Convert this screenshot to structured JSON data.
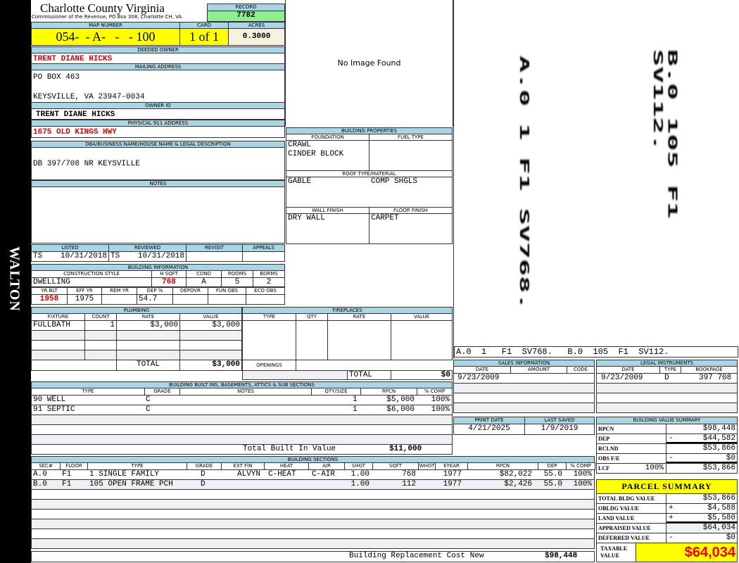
{
  "county": {
    "title": "Charlotte County Virginia",
    "subtitle": "Commissioner of the Revenue, PO Box 308, Charlotte CH, VA"
  },
  "side_label": "WALTON",
  "record": {
    "label": "RECORD",
    "value": "7782"
  },
  "map": {
    "label": "MAP NUMBER",
    "value": "054-  - A-   -   - 100",
    "card_label": "CARD",
    "card": "1 of 1",
    "acres_label": "ACRES",
    "acres": "0.3000"
  },
  "owner": {
    "deeded_label": "DEEDED OWNER",
    "deeded": "TRENT DIANE HICKS",
    "mailing_label": "MAILING ADDRESS",
    "mail1": "PO BOX 463",
    "mail2": "KEYSVILLE, VA 23947-0034",
    "owner_id_label": "OWNER ID",
    "owner_id": "TRENT DIANE HICKS",
    "physical_label": "PHYSICAL 911 ADDRESS",
    "physical": "1675 OLD KINGS HWY",
    "dba_label": "DBA/BUSINESS NAME/HOUSE NAME & LEGAL DESCRIPTION",
    "dba": "DB 397/708 NR KEYSVILLE",
    "notes_label": "NOTES"
  },
  "image": {
    "no_image": "No Image Found"
  },
  "props": {
    "title": "BUILDING PROPERTIES",
    "foundation_label": "FOUNDATION",
    "fuel_label": "FUEL TYPE",
    "foundation1": "CRAWL",
    "foundation2": "CINDER BLOCK",
    "roof_label": "ROOF TYPE/MATERIAL",
    "roof1": "GABLE",
    "roof2": "COMP SHGLS",
    "wall_label": "WALL FINISH",
    "floor_label": "FLOOR FINISH",
    "wall": "DRY WALL",
    "floor": "CARPET"
  },
  "sketch": {
    "caption": "A.0  1   F1  SV768.   B.0  105  F1  SV112.",
    "v1": "A.0 1 F1 SV768.",
    "v2": "B.0 105 F1 SV112."
  },
  "review": {
    "listed_label": "LISTED",
    "listed_by": "TS",
    "listed": "10/31/2018",
    "reviewed_label": "REVIEWED",
    "reviewed_by": "TS",
    "reviewed": "10/31/2018",
    "revisit_label": "REVISIT",
    "appeals_label": "APPEALS"
  },
  "bldg": {
    "title": "BUILDING INFORMATION",
    "style_label": "CONSTRUCTION STYLE",
    "style": "DWELLING",
    "hsqft_label": "H SQFT",
    "hsqft": "768",
    "cond_label": "COND",
    "cond": "A",
    "rooms_label": "ROOMS",
    "rooms": "5",
    "bdrms_label": "BDRMS",
    "bdrms": "2",
    "yrblt_label": "YR BLT",
    "yrblt": "1958",
    "effyr_label": "EFF YR",
    "effyr": "1975",
    "remyr_label": "REM YR",
    "dep_label": "DEP %",
    "dep": "54.7",
    "depovr_label": "DEPOVR",
    "funobs_label": "FUN OBS",
    "ecoobs_label": "ECO OBS"
  },
  "plumbing": {
    "title": "PLUMBING",
    "cols": [
      "FIXTURE",
      "COUNT",
      "RATE",
      "VALUE"
    ],
    "rows": [
      [
        "FULLBATH",
        "1",
        "$3,000",
        "$3,000"
      ]
    ],
    "total_label": "TOTAL",
    "total": "$3,000"
  },
  "fireplaces": {
    "title": "FIREPLACES",
    "cols": [
      "TYPE",
      "QTY",
      "RATE",
      "VALUE"
    ],
    "openings_label": "OPENINGS",
    "total_label": "TOTAL",
    "total": "$0"
  },
  "builtins": {
    "title": "BUILDING BUILT INS, BASEMENTS, ATTICS & SUB SECTIONS",
    "cols": [
      "TYPE",
      "GRADE",
      "NOTES",
      "QTY/SIZE",
      "RPCN",
      "% COMP"
    ],
    "rows": [
      [
        "90 WELL",
        "C",
        "",
        "1",
        "$5,000",
        "100%"
      ],
      [
        "91 SEPTIC",
        "C",
        "",
        "1",
        "$6,000",
        "100%"
      ]
    ],
    "total_label": "Total Built In Value",
    "total": "$11,000"
  },
  "sections": {
    "title": "BUILDING SECTIONS",
    "cols": [
      "SEC#",
      "FLOOR",
      "TYPE",
      "GRADE",
      "EXT FIN",
      "HEAT",
      "AIR",
      "SHGT",
      "SQFT",
      "WHGT",
      "EYEAR",
      "RPCN",
      "DEP",
      "% COMP"
    ],
    "rows": [
      [
        "A.0",
        "F1",
        "1 SINGLE FAMILY",
        "D",
        "ALVYN",
        "C-HEAT",
        "C-AIR",
        "1.00",
        "768",
        "",
        "1977",
        "$82,022",
        "55.0",
        "100%"
      ],
      [
        "B.0",
        "F1",
        "105 OPEN FRAME PCH",
        "D",
        "",
        "",
        "",
        "1.00",
        "112",
        "",
        "1977",
        "$2,426",
        "55.0",
        "100%"
      ]
    ],
    "total_label": "Building Replacement Cost New",
    "total": "$98,448"
  },
  "sales": {
    "title": "SALES INFORMATION",
    "cols": [
      "DATE",
      "AMOUNT",
      "CODE"
    ],
    "rows": [
      [
        "9/23/2009",
        "",
        ""
      ]
    ]
  },
  "legal": {
    "title": "LEGAL INSTRUMENTS",
    "cols": [
      "DATE",
      "TYPE",
      "BOOKPAGE"
    ],
    "rows": [
      [
        "9/23/2009",
        "D",
        "397 708"
      ]
    ]
  },
  "dates": {
    "print_label": "PRINT DATE",
    "print": "4/21/2025",
    "saved_label": "LAST SAVED",
    "saved": "1/9/2019"
  },
  "bvs": {
    "title": "BUILDING VALUE SUMMARY",
    "rows": [
      {
        "label": "RPCN",
        "sign": "",
        "value": "$98,448"
      },
      {
        "label": "DEP",
        "sign": "-",
        "value": "$44,582"
      },
      {
        "label": "RCLND",
        "sign": "",
        "value": "$53,866"
      },
      {
        "label": "OBS F/E",
        "sign": "-",
        "value": "$0"
      },
      {
        "label": "LCF",
        "pct": "100%",
        "sign": "",
        "value": "$53,866"
      }
    ]
  },
  "parcel": {
    "title": "PARCEL SUMMARY",
    "rows": [
      {
        "label": "TOTAL BLDG VALUE",
        "sign": "",
        "value": "$53,866"
      },
      {
        "label": "OBLDG VALUE",
        "sign": "+",
        "value": "$4,588"
      },
      {
        "label": "LAND VALUE",
        "sign": "+",
        "value": "$5,580"
      },
      {
        "label": "APPRAISED VALUE",
        "sign": "",
        "value": "$64,034"
      },
      {
        "label": "DEFERRED VALUE",
        "sign": "-",
        "value": "$0"
      }
    ],
    "taxable_label1": "TAXABLE",
    "taxable_label2": "VALUE",
    "taxable": "$64,034"
  },
  "colors": {
    "header": "#a9d5e4",
    "yellow": "#ffff00",
    "green": "#90ee90",
    "red": "#dd0000"
  }
}
